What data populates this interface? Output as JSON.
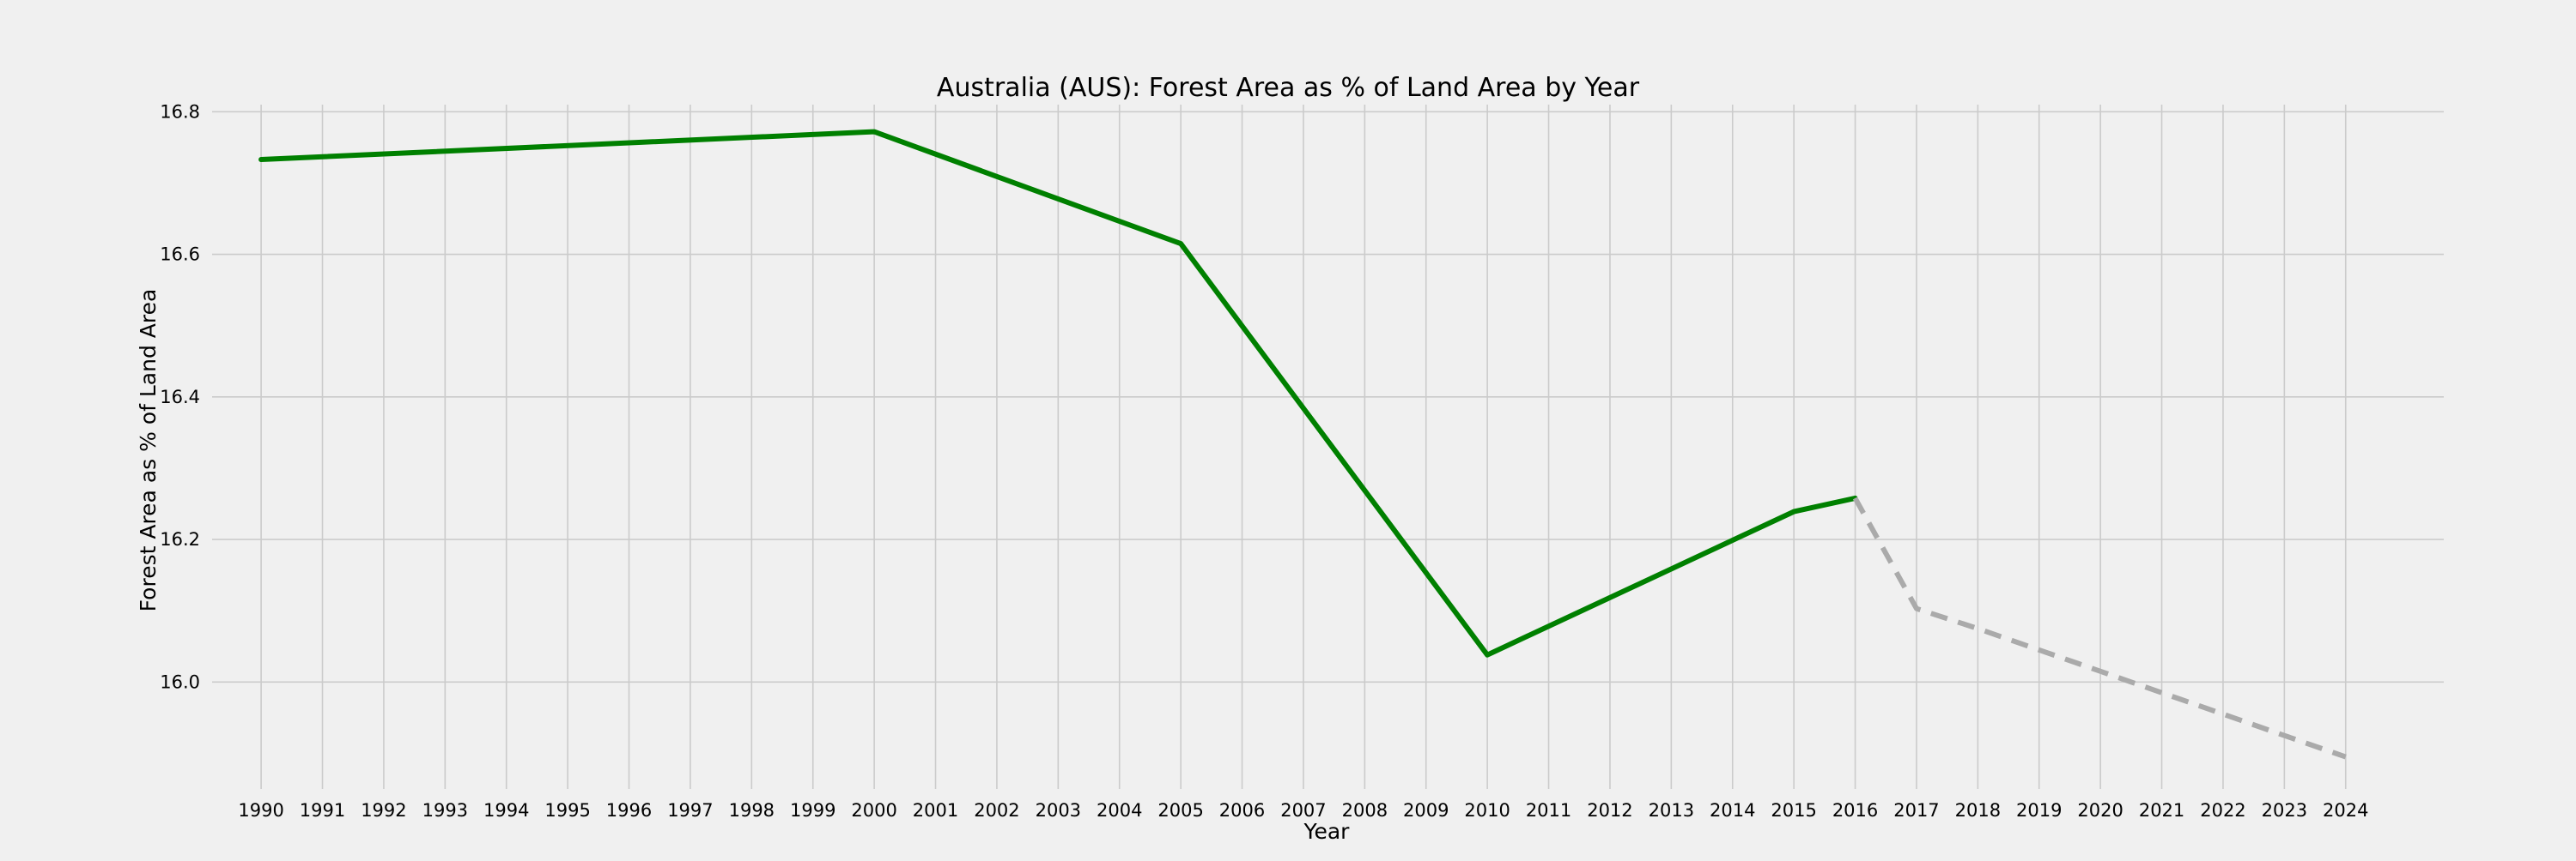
{
  "chart_data": {
    "type": "line",
    "title": "Australia (AUS): Forest Area as % of Land Area by Year",
    "xlabel": "Year",
    "ylabel": "Forest Area as % of Land Area",
    "xlim": [
      1989.2,
      2025.6
    ],
    "ylim": [
      15.85,
      16.81
    ],
    "x_ticks": [
      1990,
      1991,
      1992,
      1993,
      1994,
      1995,
      1996,
      1997,
      1998,
      1999,
      2000,
      2001,
      2002,
      2003,
      2004,
      2005,
      2006,
      2007,
      2008,
      2009,
      2010,
      2011,
      2012,
      2013,
      2014,
      2015,
      2016,
      2017,
      2018,
      2019,
      2020,
      2021,
      2022,
      2023,
      2024
    ],
    "y_ticks": [
      16.0,
      16.2,
      16.4,
      16.6,
      16.8
    ],
    "y_tick_labels": [
      "16.0",
      "16.2",
      "16.4",
      "16.6",
      "16.8"
    ],
    "grid": true,
    "series": [
      {
        "style": "solid",
        "color": "#008000",
        "x": [
          1990,
          2000,
          2005,
          2010,
          2015,
          2016
        ],
        "y": [
          16.733,
          16.772,
          16.615,
          16.038,
          16.239,
          16.258
        ]
      },
      {
        "style": "dashed",
        "color": "#aaaaaa",
        "x": [
          2016,
          2017,
          2018,
          2019,
          2020,
          2021,
          2022,
          2023,
          2024
        ],
        "y": [
          16.258,
          16.103,
          16.075,
          16.045,
          16.015,
          15.985,
          15.955,
          15.925,
          15.895
        ]
      }
    ]
  }
}
